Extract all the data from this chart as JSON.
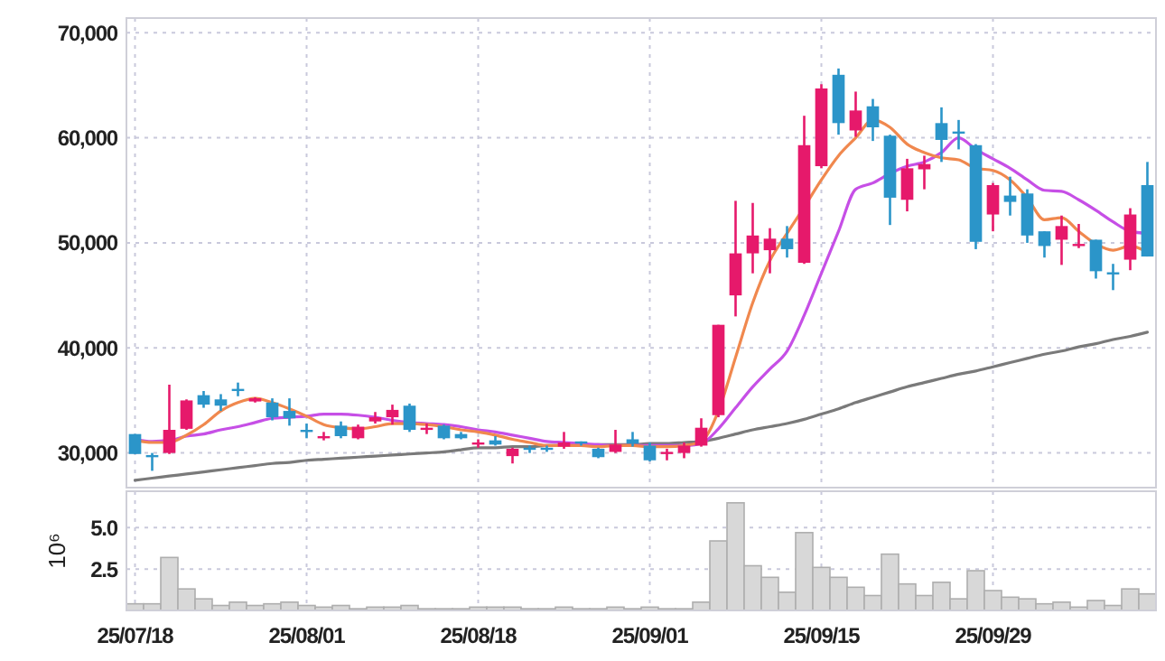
{
  "chart_data": [
    {
      "type": "candlestick",
      "tick_labels": "y",
      "grid": true,
      "categories": [
        null,
        null,
        null,
        null,
        null,
        null,
        null,
        null,
        null,
        null,
        null,
        null,
        null,
        null,
        null,
        null,
        null,
        null,
        null,
        null,
        null,
        null,
        null,
        null,
        null,
        null,
        null,
        null,
        null,
        null,
        null,
        null,
        null,
        null,
        null,
        null,
        null,
        null,
        null,
        null,
        null,
        null,
        null,
        null,
        null,
        null,
        null,
        null,
        null,
        null,
        null,
        null,
        null,
        null,
        null,
        null,
        null,
        null,
        null,
        null
      ],
      "ylim": [
        26700,
        71400
      ],
      "yticks": [
        {
          "value": 30000,
          "label": "30,000"
        },
        {
          "value": 40000,
          "label": "40,000"
        },
        {
          "value": 50000,
          "label": "50,000"
        },
        {
          "value": 60000,
          "label": "60,000"
        },
        {
          "value": 70000,
          "label": "70,000"
        }
      ],
      "ohlc": [
        [
          31800,
          31800,
          29900,
          29900
        ],
        [
          29800,
          30000,
          28300,
          29600
        ],
        [
          30000,
          36500,
          29900,
          32200
        ],
        [
          32300,
          35100,
          32200,
          35000
        ],
        [
          35500,
          35900,
          34300,
          34600
        ],
        [
          35100,
          35600,
          34000,
          34500
        ],
        [
          36100,
          36700,
          35400,
          36000
        ],
        [
          34900,
          35300,
          34800,
          35200
        ],
        [
          34800,
          35200,
          33100,
          33400
        ],
        [
          34000,
          35200,
          32600,
          33300
        ],
        [
          32200,
          32800,
          31400,
          32100
        ],
        [
          31400,
          32000,
          31200,
          31600
        ],
        [
          32600,
          33000,
          31400,
          31600
        ],
        [
          31400,
          32700,
          31300,
          32500
        ],
        [
          33000,
          33900,
          32800,
          33400
        ],
        [
          33400,
          34600,
          32700,
          34100
        ],
        [
          34500,
          34700,
          32000,
          32200
        ],
        [
          32200,
          32800,
          31800,
          32400
        ],
        [
          32600,
          32700,
          31300,
          31400
        ],
        [
          31800,
          32000,
          31300,
          31400
        ],
        [
          31000,
          31300,
          30500,
          31000
        ],
        [
          31200,
          31600,
          30700,
          30800
        ],
        [
          29700,
          30500,
          29000,
          30400
        ],
        [
          30500,
          30700,
          30000,
          30400
        ],
        [
          30500,
          30700,
          30100,
          30400
        ],
        [
          30600,
          32000,
          30400,
          31000
        ],
        [
          31100,
          31100,
          30700,
          30900
        ],
        [
          30400,
          30500,
          29500,
          29600
        ],
        [
          30100,
          32200,
          30000,
          30800
        ],
        [
          31300,
          32000,
          30600,
          30900
        ],
        [
          30700,
          31000,
          29200,
          29300
        ],
        [
          29900,
          30400,
          29300,
          30100
        ],
        [
          30000,
          31000,
          29500,
          30700
        ],
        [
          30700,
          33300,
          30600,
          32400
        ],
        [
          33600,
          42200,
          33400,
          42200
        ],
        [
          45000,
          54000,
          43000,
          49000
        ],
        [
          49000,
          53800,
          47100,
          50700
        ],
        [
          49300,
          51400,
          47100,
          50400
        ],
        [
          50400,
          51600,
          48600,
          49400
        ],
        [
          48100,
          62100,
          48000,
          59300
        ],
        [
          57300,
          65100,
          57100,
          64700
        ],
        [
          66000,
          66600,
          60300,
          61400
        ],
        [
          60700,
          64400,
          60100,
          62600
        ],
        [
          63000,
          63700,
          59700,
          61000
        ],
        [
          60200,
          60300,
          51700,
          54300
        ],
        [
          54100,
          58000,
          53000,
          57100
        ],
        [
          57000,
          58300,
          55100,
          57500
        ],
        [
          61400,
          62900,
          57700,
          59800
        ],
        [
          60600,
          61700,
          58900,
          60400
        ],
        [
          59300,
          59400,
          49400,
          50100
        ],
        [
          52700,
          55700,
          51100,
          55500
        ],
        [
          54500,
          56300,
          52600,
          53900
        ],
        [
          54700,
          55100,
          50000,
          50700
        ],
        [
          51100,
          51100,
          48600,
          49700
        ],
        [
          50300,
          52600,
          47900,
          51600
        ],
        [
          49800,
          51800,
          49500,
          49900
        ],
        [
          50300,
          50300,
          46600,
          47300
        ],
        [
          47200,
          48000,
          45500,
          47100
        ],
        [
          48400,
          53300,
          47400,
          52700
        ],
        [
          55500,
          57700,
          48700,
          48700
        ]
      ],
      "colors": [
        "#2b95c9",
        "#2b95c9",
        "#e6196b",
        "#e6196b",
        "#2b95c9",
        "#2b95c9",
        "#2b95c9",
        "#e6196b",
        "#2b95c9",
        "#2b95c9",
        "#2b95c9",
        "#e6196b",
        "#2b95c9",
        "#e6196b",
        "#e6196b",
        "#e6196b",
        "#2b95c9",
        "#e6196b",
        "#2b95c9",
        "#2b95c9",
        "#e6196b",
        "#2b95c9",
        "#e6196b",
        "#2b95c9",
        "#2b95c9",
        "#e6196b",
        "#2b95c9",
        "#2b95c9",
        "#e6196b",
        "#2b95c9",
        "#2b95c9",
        "#e6196b",
        "#e6196b",
        "#e6196b",
        "#e6196b",
        "#e6196b",
        "#e6196b",
        "#e6196b",
        "#2b95c9",
        "#e6196b",
        "#e6196b",
        "#2b95c9",
        "#e6196b",
        "#2b95c9",
        "#2b95c9",
        "#e6196b",
        "#e6196b",
        "#2b95c9",
        "#2b95c9",
        "#2b95c9",
        "#e6196b",
        "#2b95c9",
        "#2b95c9",
        "#2b95c9",
        "#e6196b",
        "#e6196b",
        "#2b95c9",
        "#2b95c9",
        "#e6196b",
        "#2b95c9"
      ],
      "series": [
        {
          "type": "line",
          "color": "#7a7a7a",
          "values": [
            27400,
            27600,
            27800,
            28000,
            28200,
            28400,
            28600,
            28800,
            29000,
            29100,
            29300,
            29400,
            29500,
            29600,
            29700,
            29800,
            29900,
            30000,
            30100,
            30300,
            30500,
            30500,
            30600,
            30600,
            30700,
            30700,
            30700,
            30800,
            30800,
            30800,
            30900,
            30900,
            31000,
            31100,
            31400,
            31800,
            32200,
            32500,
            32800,
            33200,
            33700,
            34200,
            34800,
            35300,
            35800,
            36300,
            36700,
            37100,
            37500,
            37800,
            38200,
            38600,
            39000,
            39400,
            39700,
            40100,
            40400,
            40800,
            41100,
            41500
          ]
        },
        {
          "type": "line",
          "color": "#c64fe6",
          "values": [
            31300,
            31100,
            31200,
            31600,
            31800,
            32200,
            32500,
            32900,
            33300,
            33400,
            33500,
            33700,
            33700,
            33600,
            33400,
            33100,
            32900,
            32800,
            32700,
            32500,
            32200,
            32000,
            31700,
            31400,
            31100,
            31000,
            30900,
            30800,
            30700,
            30700,
            30700,
            30700,
            30700,
            30900,
            32300,
            34300,
            36300,
            38000,
            39700,
            43100,
            47100,
            51100,
            55100,
            55700,
            56600,
            57300,
            57700,
            58600,
            60000,
            58900,
            58000,
            57100,
            56000,
            55000,
            54900,
            54100,
            53100,
            52000,
            51100,
            50900
          ]
        },
        {
          "type": "line",
          "color": "#f0884e",
          "values": [
            31200,
            31000,
            31000,
            31700,
            32700,
            34000,
            34800,
            35200,
            34800,
            34200,
            33500,
            32700,
            32400,
            32300,
            32500,
            32800,
            32800,
            32700,
            32500,
            32200,
            32000,
            31700,
            31300,
            31000,
            30700,
            30700,
            30700,
            30600,
            30700,
            30700,
            30600,
            30600,
            30700,
            31100,
            34000,
            39100,
            44300,
            48300,
            50900,
            53400,
            56000,
            58300,
            60000,
            61700,
            61000,
            59400,
            58600,
            58100,
            57900,
            57100,
            56900,
            56000,
            54300,
            52200,
            52400,
            51100,
            49900,
            49300,
            49700,
            49100
          ]
        }
      ]
    },
    {
      "type": "bar",
      "grid": true,
      "ylabel": "10⁶",
      "color": "#d8d8d8",
      "categories": [
        "25/07/18",
        null,
        null,
        null,
        null,
        null,
        null,
        null,
        null,
        null,
        "25/08/01",
        null,
        null,
        null,
        null,
        null,
        null,
        null,
        null,
        null,
        "25/08/18",
        null,
        null,
        null,
        null,
        null,
        null,
        null,
        null,
        null,
        "25/09/01",
        null,
        null,
        null,
        null,
        null,
        null,
        null,
        null,
        null,
        "25/09/15",
        null,
        null,
        null,
        null,
        null,
        null,
        null,
        null,
        null,
        "25/09/29",
        null,
        null,
        null,
        null,
        null,
        null,
        null,
        null,
        null
      ],
      "ylim": [
        0,
        7.2
      ],
      "yticks": [
        2.5,
        {
          "value": 5,
          "label": "5.0"
        }
      ],
      "values": [
        0.4,
        0.4,
        3.2,
        1.3,
        0.7,
        0.3,
        0.5,
        0.3,
        0.4,
        0.5,
        0.3,
        0.2,
        0.3,
        0.1,
        0.2,
        0.2,
        0.3,
        0.1,
        0.1,
        0.1,
        0.2,
        0.2,
        0.2,
        0.1,
        0.1,
        0.2,
        0.1,
        0.1,
        0.2,
        0.1,
        0.2,
        0.1,
        0.1,
        0.5,
        4.2,
        6.5,
        2.7,
        2.0,
        1.1,
        4.7,
        2.6,
        2.0,
        1.4,
        0.9,
        3.4,
        1.6,
        0.9,
        1.7,
        0.7,
        2.4,
        1.2,
        0.8,
        0.7,
        0.4,
        0.5,
        0.2,
        0.6,
        0.3,
        1.3,
        1.0
      ]
    }
  ]
}
